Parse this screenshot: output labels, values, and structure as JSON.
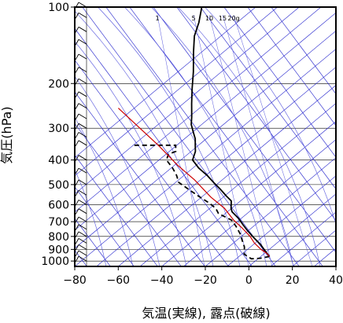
{
  "chart_data": {
    "type": "line",
    "subtype": "skew-T log-p",
    "xlabel": "気温(実線), 露点(破線)",
    "ylabel": "気圧(hPa)",
    "xlim": [
      -80,
      40
    ],
    "ylim": [
      1050,
      100
    ],
    "y_scale": "log",
    "x_ticks": [
      -80,
      -60,
      -40,
      -20,
      0,
      20,
      40
    ],
    "y_ticks": [
      100,
      200,
      300,
      400,
      500,
      600,
      700,
      800,
      900,
      1000
    ],
    "mixing_ratio_labels": [
      "1",
      "5",
      "10",
      "15",
      "20g"
    ],
    "colors": {
      "temperature": "#000000",
      "dewpoint": "#000000",
      "parcel": "#cc0000",
      "isotherm_dry_adiabat": "#2222cc",
      "moist_adiabat": "#5555dd",
      "grid": "#000000",
      "wind_barbs": "#000000"
    },
    "series": [
      {
        "style": "solid",
        "points": [
          [
            -61,
            100
          ],
          [
            -60,
            115
          ],
          [
            -60,
            130
          ],
          [
            -58,
            150
          ],
          [
            -55,
            180
          ],
          [
            -53,
            210
          ],
          [
            -51,
            240
          ],
          [
            -49,
            270
          ],
          [
            -48,
            290
          ],
          [
            -46,
            310
          ],
          [
            -44,
            330
          ],
          [
            -43,
            350
          ],
          [
            -42,
            370
          ],
          [
            -42,
            380
          ],
          [
            -42,
            400
          ],
          [
            -38,
            430
          ],
          [
            -33,
            460
          ],
          [
            -29,
            490
          ],
          [
            -25,
            520
          ],
          [
            -21,
            555
          ],
          [
            -18,
            580
          ],
          [
            -17,
            620
          ],
          [
            -16,
            640
          ],
          [
            -12,
            680
          ],
          [
            -9,
            720
          ],
          [
            -6,
            760
          ],
          [
            -2,
            810
          ],
          [
            2,
            860
          ],
          [
            5,
            910
          ],
          [
            8,
            960
          ]
        ]
      },
      {
        "style": "dashed",
        "points": [
          [
            -71,
            350
          ],
          [
            -66,
            350
          ],
          [
            -61,
            350
          ],
          [
            -56,
            350
          ],
          [
            -52,
            350
          ],
          [
            -51,
            370
          ],
          [
            -54,
            380
          ],
          [
            -54,
            400
          ],
          [
            -50,
            430
          ],
          [
            -47,
            460
          ],
          [
            -45,
            490
          ],
          [
            -38,
            530
          ],
          [
            -33,
            560
          ],
          [
            -28,
            590
          ],
          [
            -24,
            620
          ],
          [
            -22,
            650
          ],
          [
            -15,
            690
          ],
          [
            -12,
            730
          ],
          [
            -9,
            780
          ],
          [
            -7,
            830
          ],
          [
            -5,
            880
          ],
          [
            -4,
            940
          ],
          [
            0,
            980
          ],
          [
            4,
            975
          ],
          [
            8,
            960
          ]
        ]
      },
      {
        "style": "solid",
        "color_key": "parcel",
        "points": [
          [
            8,
            960
          ],
          [
            6,
            930
          ],
          [
            3,
            900
          ],
          [
            -1,
            850
          ],
          [
            -4,
            800
          ],
          [
            -9,
            740
          ],
          [
            -14,
            690
          ],
          [
            -20,
            620
          ],
          [
            -28,
            560
          ],
          [
            -38,
            480
          ],
          [
            -48,
            420
          ],
          [
            -60,
            350
          ],
          [
            -71,
            300
          ],
          [
            -84,
            250
          ]
        ]
      }
    ],
    "wind_barbs": {
      "levels_hPa": [
        100,
        110,
        125,
        140,
        160,
        180,
        200,
        225,
        250,
        275,
        300,
        325,
        350,
        400,
        450,
        500,
        550,
        600,
        650,
        700,
        750,
        800,
        850,
        900,
        950,
        1000
      ]
    }
  }
}
